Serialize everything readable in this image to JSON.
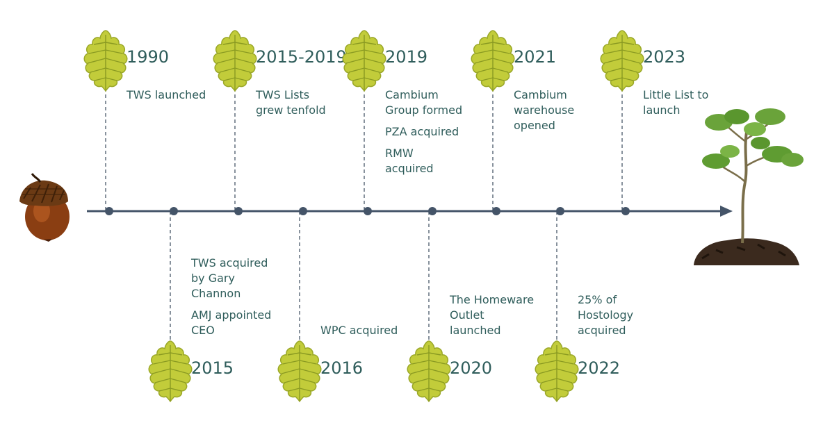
{
  "timeline": {
    "milestones": [
      {
        "year": "1990",
        "side": "above",
        "events": [
          [
            "TWS launched"
          ]
        ]
      },
      {
        "year": "2015",
        "side": "below",
        "events": [
          [
            "TWS acquired",
            "by Gary",
            "Channon"
          ],
          [
            "AMJ appointed",
            "CEO"
          ]
        ]
      },
      {
        "year": "2015-2019",
        "side": "above",
        "events": [
          [
            "TWS Lists",
            "grew tenfold"
          ]
        ]
      },
      {
        "year": "2016",
        "side": "below",
        "events": [
          [
            "WPC acquired"
          ]
        ]
      },
      {
        "year": "2019",
        "side": "above",
        "events": [
          [
            "Cambium",
            "Group formed"
          ],
          [
            "PZA acquired"
          ],
          [
            "RMW",
            "acquired"
          ]
        ]
      },
      {
        "year": "2020",
        "side": "below",
        "events": [
          [
            "The Homeware",
            "Outlet",
            "launched"
          ]
        ]
      },
      {
        "year": "2021",
        "side": "above",
        "events": [
          [
            "Cambium",
            "warehouse",
            "opened"
          ]
        ]
      },
      {
        "year": "2022",
        "side": "below",
        "events": [
          [
            "25% of",
            "Hostology",
            "acquired"
          ]
        ]
      },
      {
        "year": "2023",
        "side": "above",
        "events": [
          [
            "Little List to",
            "launch"
          ]
        ]
      }
    ],
    "start_icon": "acorn-icon",
    "end_icon": "oak-sapling-icon",
    "milestone_icon": "oak-leaf-icon"
  },
  "colors": {
    "axis": "#445468",
    "node": "#445468",
    "text": "#2f5d5b",
    "leaf": "#c2cc3a",
    "leaf_dark": "#9aa728"
  }
}
